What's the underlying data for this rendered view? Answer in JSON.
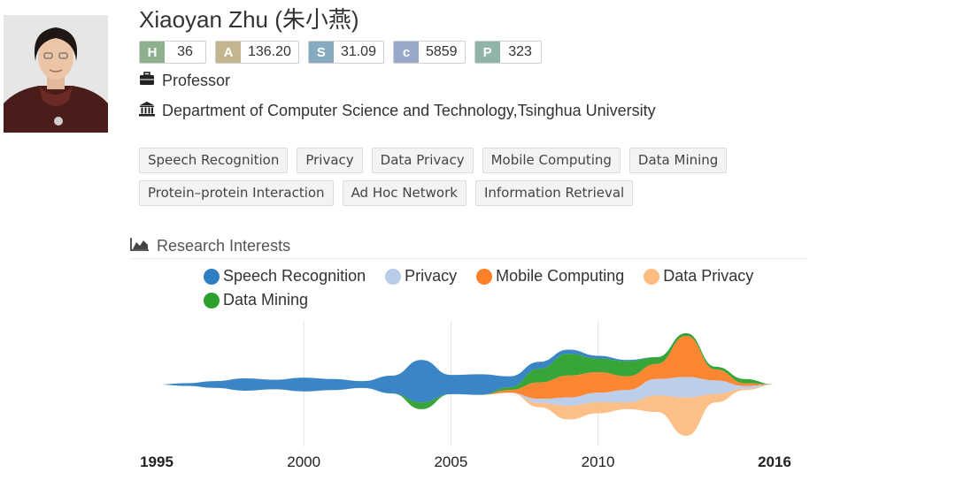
{
  "profile": {
    "name": "Xiaoyan Zhu (朱小燕)",
    "title": "Professor",
    "affiliation": "Department of Computer Science and Technology,Tsinghua University",
    "title_icon": "briefcase-icon",
    "affiliation_icon": "institution-icon"
  },
  "metrics": [
    {
      "key": "H",
      "value": "36",
      "color": "#8fb08f"
    },
    {
      "key": "A",
      "value": "136.20",
      "color": "#c3b58d"
    },
    {
      "key": "S",
      "value": "31.09",
      "color": "#86aac1"
    },
    {
      "key": "c",
      "value": "5859",
      "color": "#9aa9cb"
    },
    {
      "key": "P",
      "value": "323",
      "color": "#8fb4a9"
    }
  ],
  "tags": [
    "Speech Recognition",
    "Privacy",
    "Data Privacy",
    "Mobile Computing",
    "Data Mining",
    "Protein–protein Interaction",
    "Ad Hoc Network",
    "Information Retrieval"
  ],
  "research": {
    "title": "Research Interests",
    "icon": "area-chart-icon"
  },
  "chart_data": {
    "type": "area",
    "subtype": "streamgraph",
    "title": "",
    "x": [
      1995,
      1996,
      1997,
      1998,
      1999,
      2000,
      2001,
      2002,
      2003,
      2004,
      2005,
      2006,
      2007,
      2008,
      2009,
      2010,
      2011,
      2012,
      2013,
      2014,
      2015,
      2016
    ],
    "tick_labels": [
      {
        "value": 1995,
        "label": "1995",
        "bold": true
      },
      {
        "value": 2000,
        "label": "2000",
        "bold": false
      },
      {
        "value": 2005,
        "label": "2005",
        "bold": false
      },
      {
        "value": 2010,
        "label": "2010",
        "bold": false
      },
      {
        "value": 2016,
        "label": "2016",
        "bold": true
      }
    ],
    "gridlines": [
      2000,
      2005,
      2010
    ],
    "grid": true,
    "legend_position": "top",
    "series": [
      {
        "name": "Speech Recognition",
        "color": "#2f7ec2",
        "values": [
          0,
          2,
          5,
          9,
          7,
          10,
          8,
          5,
          13,
          31,
          14,
          15,
          8,
          5,
          3,
          2,
          1,
          0,
          0,
          0,
          0,
          0
        ]
      },
      {
        "name": "Data Mining",
        "color": "#2ca02c",
        "values": [
          0,
          0,
          0,
          0,
          0,
          0,
          0,
          0,
          0,
          5,
          0,
          0,
          2,
          10,
          16,
          10,
          11,
          5,
          2,
          2,
          3,
          0
        ]
      },
      {
        "name": "Mobile Computing",
        "color": "#fd7f28",
        "values": [
          0,
          0,
          0,
          0,
          0,
          0,
          0,
          0,
          0,
          0,
          0,
          0,
          2,
          12,
          16,
          15,
          10,
          11,
          30,
          8,
          2,
          0
        ]
      },
      {
        "name": "Privacy",
        "color": "#b8cbe8",
        "values": [
          0,
          0,
          0,
          0,
          0,
          0,
          0,
          0,
          0,
          0,
          0,
          0,
          0,
          3,
          6,
          7,
          9,
          12,
          15,
          10,
          2,
          0
        ]
      },
      {
        "name": "Data Privacy",
        "color": "#fdbc82",
        "values": [
          0,
          0,
          0,
          0,
          0,
          0,
          0,
          0,
          0,
          0,
          0,
          0,
          0,
          3,
          10,
          8,
          5,
          12,
          28,
          6,
          1,
          0
        ]
      }
    ],
    "legend_order": [
      "Speech Recognition",
      "Privacy",
      "Mobile Computing",
      "Data Privacy",
      "Data Mining"
    ]
  }
}
